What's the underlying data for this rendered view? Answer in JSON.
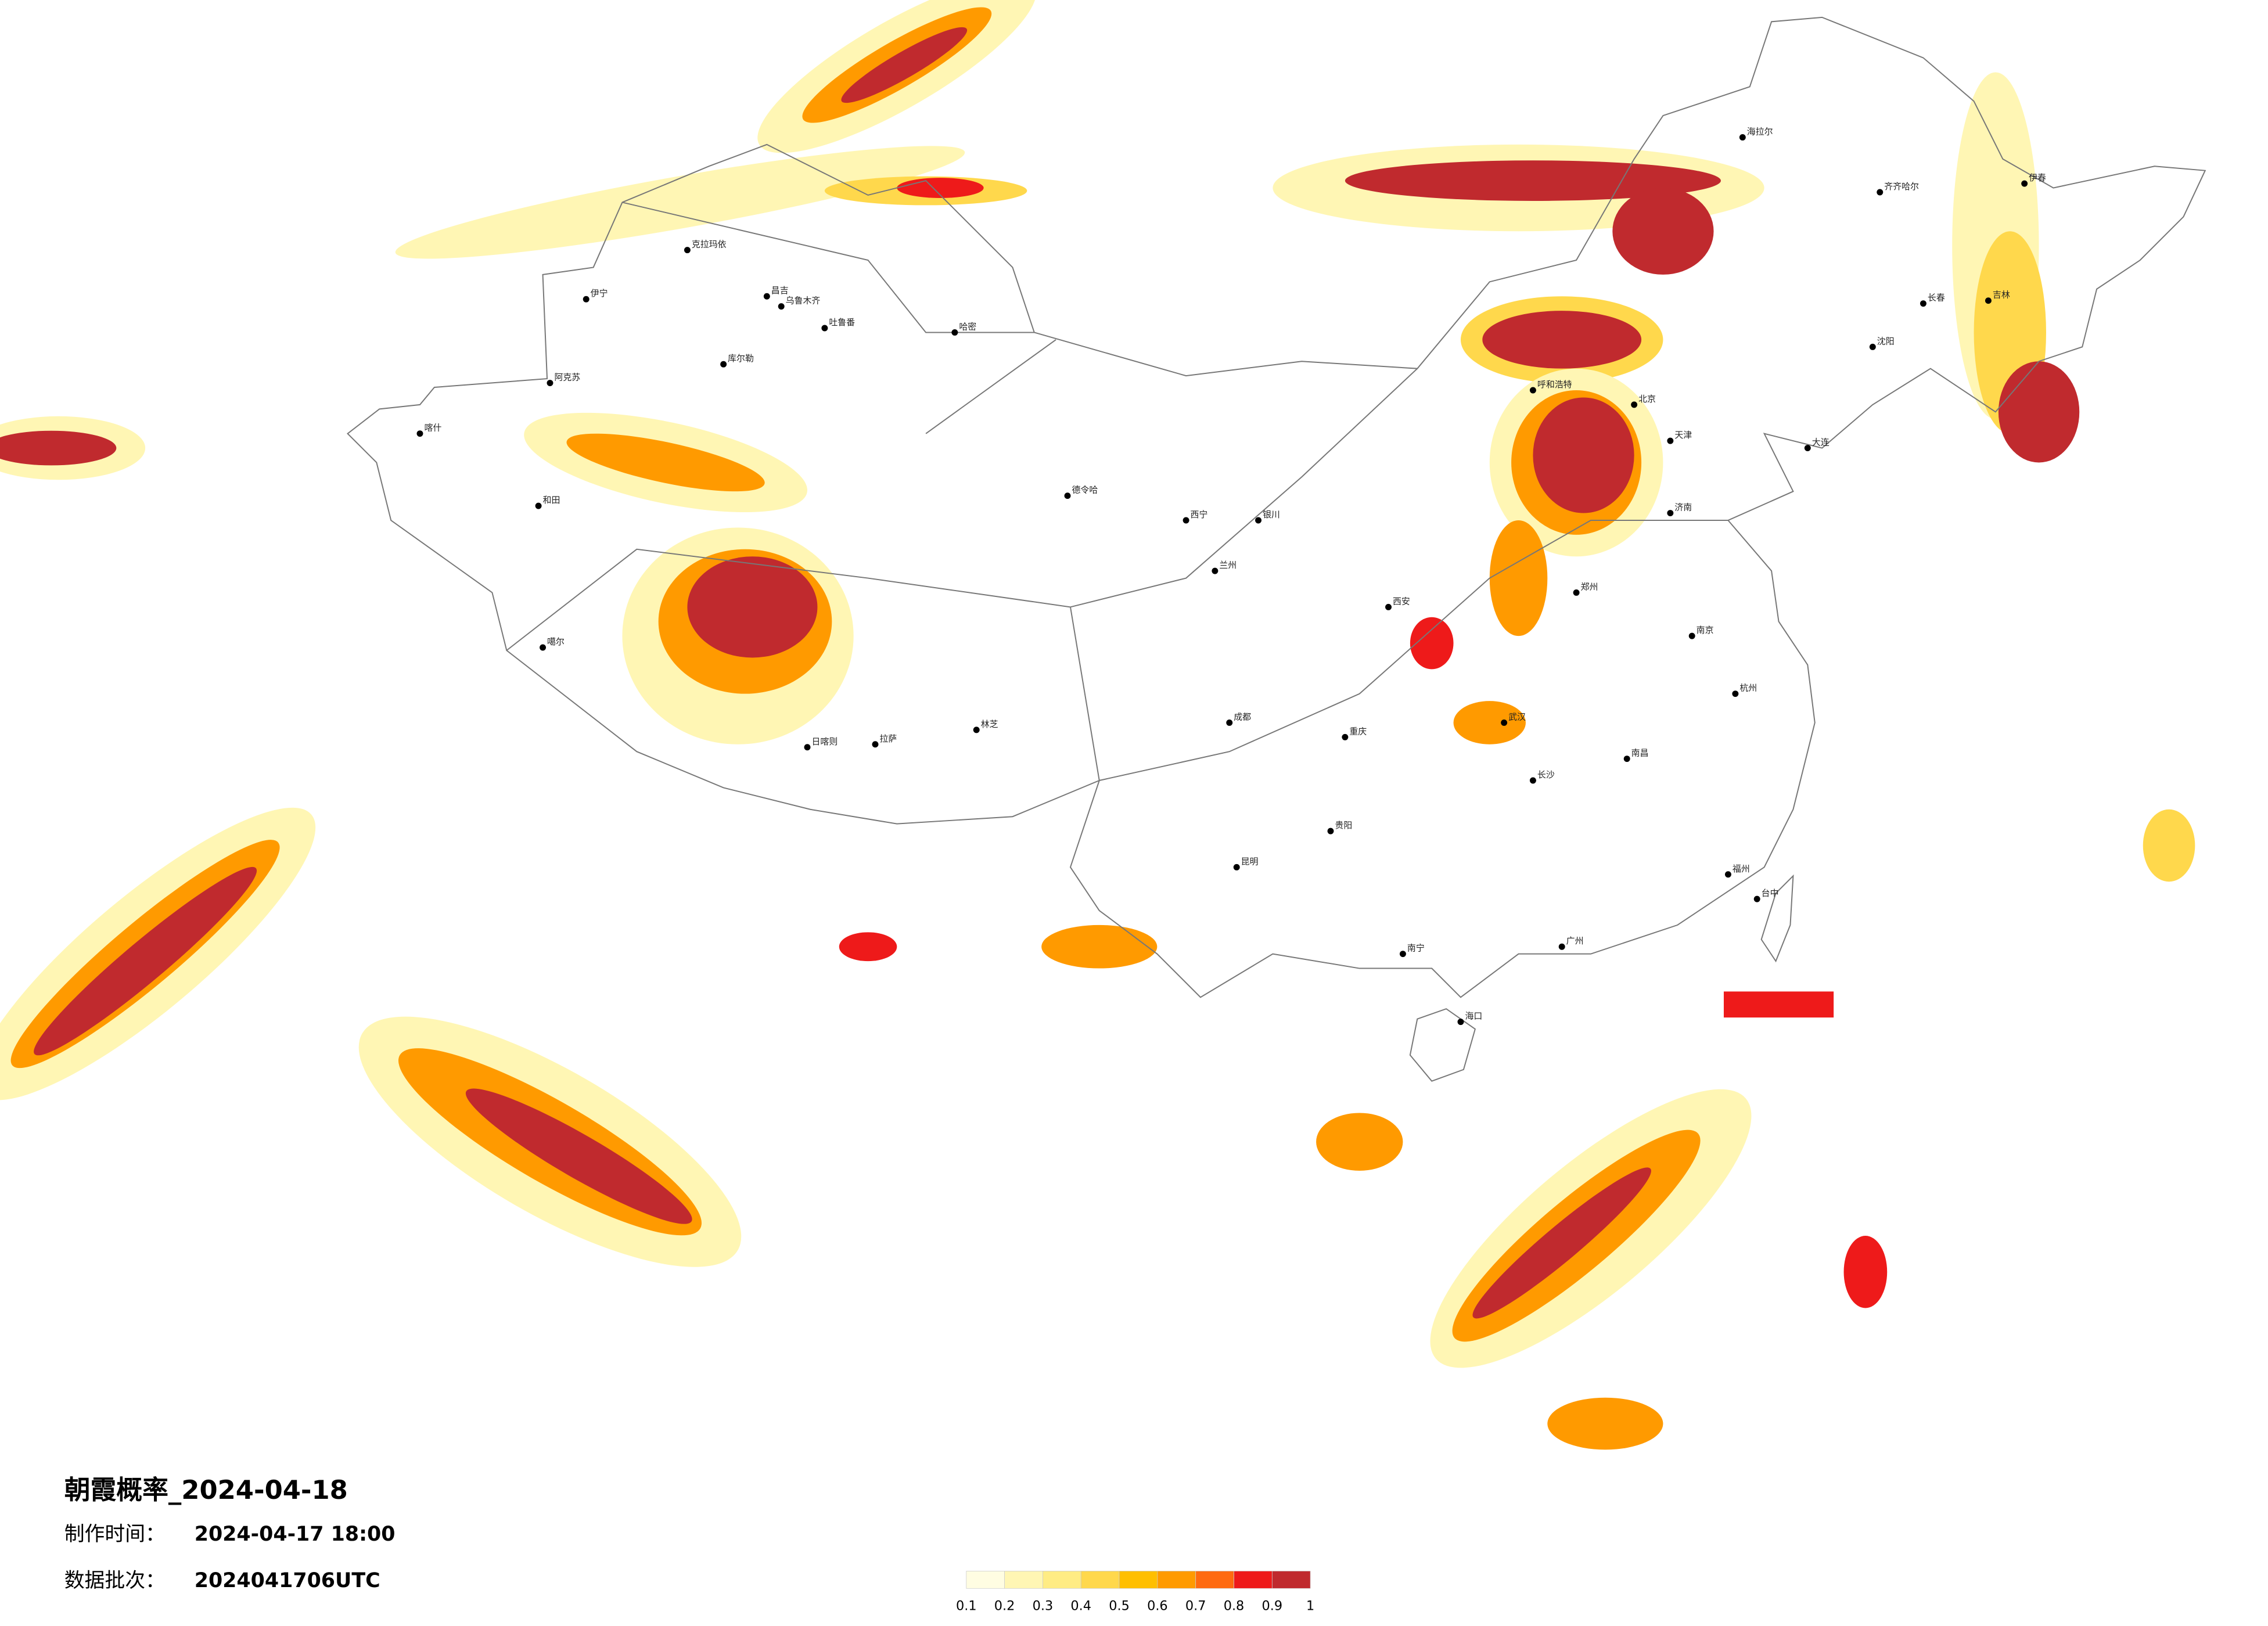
{
  "title": "朝霞概率_2024-04-18",
  "meta": [
    {
      "label": "制作时间：",
      "value": "2024-04-17 18:00"
    },
    {
      "label": "数据批次：",
      "value": "2024041706UTC"
    }
  ],
  "legend": {
    "ticks": [
      0.1,
      0.2,
      0.3,
      0.4,
      0.5,
      0.6,
      0.7,
      0.8,
      0.9,
      1
    ],
    "colors": [
      "#fffde2",
      "#fff6b4",
      "#ffec84",
      "#ffd84c",
      "#ffbf00",
      "#ff9a00",
      "#ff6a10",
      "#ee1a1a",
      "#c02a2e"
    ]
  },
  "cities": [
    "克拉玛依",
    "昌吉",
    "乌鲁木齐",
    "吐鲁番",
    "哈密",
    "伊宁",
    "阿克苏",
    "库尔勒",
    "和田",
    "喀什",
    "噶尔",
    "德令哈",
    "拉萨",
    "日喀则",
    "林芝",
    "海拉尔",
    "齐齐哈尔",
    "伊春",
    "长春",
    "吉林",
    "沈阳",
    "大连",
    "北京",
    "天津",
    "济南",
    "郑州",
    "南昌",
    "福州",
    "台中",
    "广州",
    "海口",
    "南宁",
    "昆明",
    "贵阳",
    "成都",
    "重庆",
    "西安",
    "兰州",
    "西宁",
    "银川",
    "呼和浩特",
    "武汉",
    "长沙",
    "杭州",
    "南京"
  ]
}
